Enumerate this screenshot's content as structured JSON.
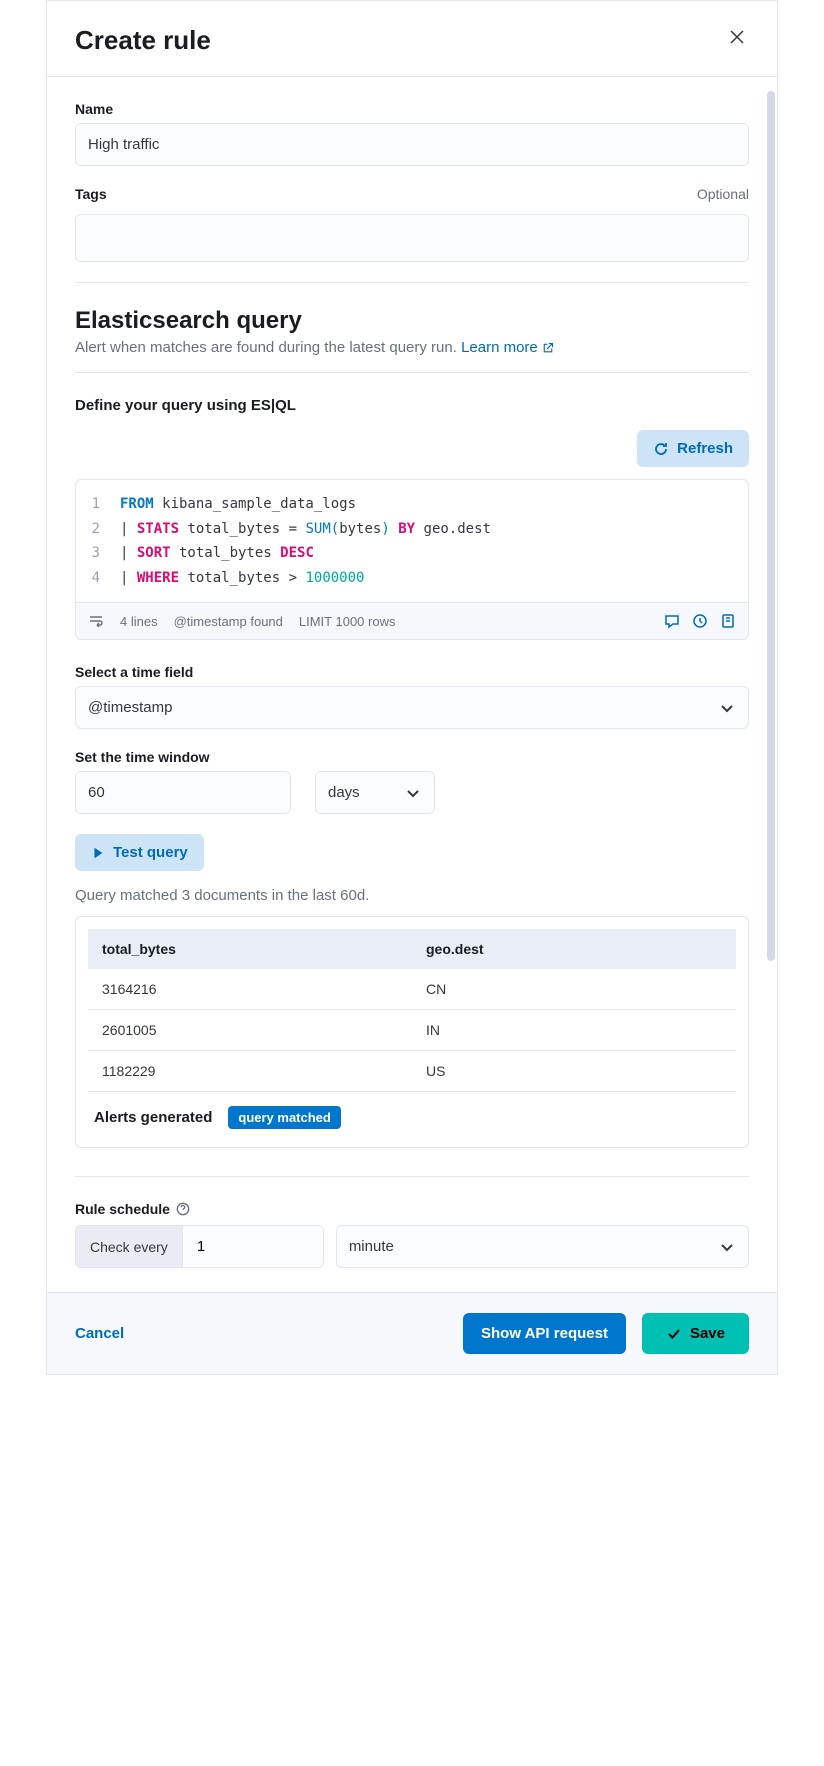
{
  "colors": {
    "primary_blue": "#0077cc",
    "link_blue": "#006bb8",
    "light_blue_bg": "#cce4f5",
    "success_teal": "#00bfb3",
    "border": "#e3e6ef",
    "text_primary": "#1a1c21",
    "text_muted": "#69707d",
    "input_bg": "#fbfcfd",
    "footer_bg": "#f7f8fc",
    "table_header_bg": "#e9edf6",
    "kw_pink": "#dd0a73",
    "kw_teal": "#00a69b"
  },
  "header": {
    "title": "Create rule"
  },
  "name_field": {
    "label": "Name",
    "value": "High traffic"
  },
  "tags_field": {
    "label": "Tags",
    "optional": "Optional",
    "value": ""
  },
  "query_section": {
    "title": "Elasticsearch query",
    "description": "Alert when matches are found during the latest query run. ",
    "learn_more": "Learn more",
    "define_label": "Define your query using ES|QL",
    "refresh_label": "Refresh"
  },
  "code": {
    "lines": [
      {
        "num": "1",
        "tokens": [
          {
            "t": "FROM",
            "c": "kw-blue"
          },
          {
            "t": " kibana_sample_data_logs",
            "c": "kw-ident"
          }
        ]
      },
      {
        "num": "2",
        "tokens": [
          {
            "t": "| ",
            "c": "kw-op"
          },
          {
            "t": "STATS",
            "c": "kw-pink"
          },
          {
            "t": " total_bytes ",
            "c": "kw-ident"
          },
          {
            "t": "=",
            "c": "kw-op"
          },
          {
            "t": " ",
            "c": ""
          },
          {
            "t": "SUM",
            "c": "kw-func"
          },
          {
            "t": "(",
            "c": "kw-paren"
          },
          {
            "t": "bytes",
            "c": "kw-ident"
          },
          {
            "t": ")",
            "c": "kw-paren"
          },
          {
            "t": " ",
            "c": ""
          },
          {
            "t": "BY",
            "c": "kw-pink"
          },
          {
            "t": " geo.dest",
            "c": "kw-ident"
          }
        ]
      },
      {
        "num": "3",
        "tokens": [
          {
            "t": "| ",
            "c": "kw-op"
          },
          {
            "t": "SORT",
            "c": "kw-pink"
          },
          {
            "t": " total_bytes ",
            "c": "kw-ident"
          },
          {
            "t": "DESC",
            "c": "kw-pink"
          }
        ]
      },
      {
        "num": "4",
        "tokens": [
          {
            "t": "| ",
            "c": "kw-op"
          },
          {
            "t": "WHERE",
            "c": "kw-pink"
          },
          {
            "t": " total_bytes ",
            "c": "kw-ident"
          },
          {
            "t": ">",
            "c": "kw-op"
          },
          {
            "t": " ",
            "c": ""
          },
          {
            "t": "1000000",
            "c": "kw-num"
          }
        ]
      }
    ],
    "footer": {
      "lines": "4 lines",
      "timestamp": "@timestamp found",
      "limit": "LIMIT 1000 rows"
    }
  },
  "time_field": {
    "label": "Select a time field",
    "value": "@timestamp"
  },
  "time_window": {
    "label": "Set the time window",
    "value": "60",
    "unit": "days"
  },
  "test_query": {
    "label": "Test query",
    "result_text": "Query matched 3 documents in the last 60d."
  },
  "results": {
    "columns": [
      "total_bytes",
      "geo.dest"
    ],
    "rows": [
      [
        "3164216",
        "CN"
      ],
      [
        "2601005",
        "IN"
      ],
      [
        "1182229",
        "US"
      ]
    ],
    "alerts_label": "Alerts generated",
    "badge": "query matched"
  },
  "schedule": {
    "label": "Rule schedule",
    "check_label": "Check every",
    "value": "1",
    "unit": "minute"
  },
  "footer": {
    "cancel": "Cancel",
    "api_request": "Show API request",
    "save": "Save"
  }
}
